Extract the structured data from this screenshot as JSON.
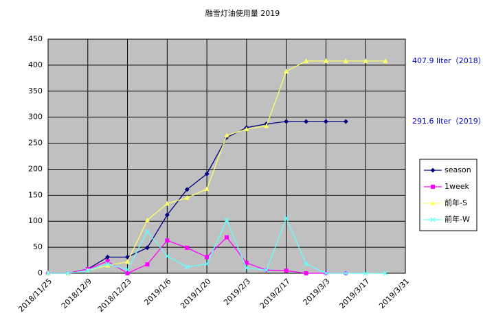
{
  "chart_data": {
    "type": "line",
    "title": "融雪灯油使用量 2019",
    "categories": [
      "2018/11/25",
      null,
      "2018/12/9",
      null,
      "2018/12/23",
      null,
      "2019/1/6",
      null,
      "2019/1/20",
      null,
      "2019/2/3",
      null,
      "2019/2/17",
      null,
      "2019/3/3",
      null,
      "2019/3/17",
      null,
      "2019/3/31"
    ],
    "series": [
      {
        "name": "season",
        "color": "#000080",
        "marker": "diamond",
        "values": [
          0,
          0,
          8,
          31,
          31,
          49,
          112,
          161,
          191,
          261,
          280,
          287,
          291.6,
          291.6,
          291.6,
          291.6,
          null,
          null,
          null
        ]
      },
      {
        "name": "1week",
        "color": "#ff00ff",
        "marker": "square",
        "values": [
          0,
          0,
          8,
          23,
          0,
          17,
          63,
          49,
          31,
          69,
          20,
          6,
          5,
          0,
          0,
          0,
          null,
          null,
          null
        ]
      },
      {
        "name": "前年-S",
        "color": "#ffff66",
        "marker": "triangle",
        "values": [
          0,
          0,
          5,
          15,
          22,
          102,
          134,
          145,
          162,
          265,
          277,
          283,
          388,
          407.9,
          407.9,
          407.9,
          407.9,
          407.9,
          null
        ]
      },
      {
        "name": "前年-W",
        "color": "#66ffff",
        "marker": "x",
        "values": [
          0,
          0,
          5,
          18,
          7,
          80,
          33,
          12,
          18,
          102,
          10,
          6,
          106,
          18,
          0,
          0,
          0,
          0,
          null
        ]
      }
    ],
    "annotations": [
      "407.9 liter（2018）",
      "291.6 liter（2019）"
    ],
    "ylim": [
      0,
      450
    ],
    "yticks": [
      0,
      50,
      100,
      150,
      200,
      250,
      300,
      350,
      400,
      450
    ],
    "grid": true
  }
}
